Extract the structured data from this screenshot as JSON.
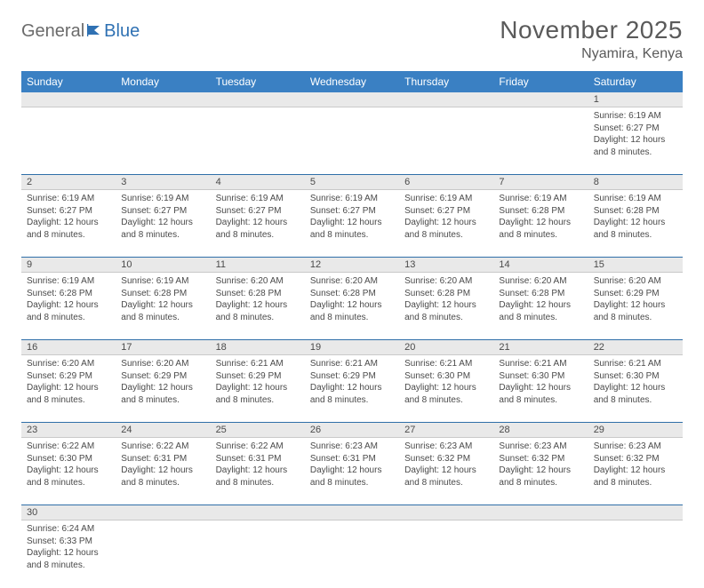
{
  "brand": {
    "part1": "General",
    "part2": "Blue"
  },
  "title": "November 2025",
  "location": "Nyamira, Kenya",
  "colors": {
    "header_bg": "#3a80c3",
    "header_text": "#ffffff",
    "daynum_bg": "#e9e9e9",
    "row_divider": "#2f6fa8",
    "text": "#4a4a4a",
    "brand_gray": "#6b6b6b",
    "brand_blue": "#2f71b3",
    "title_color": "#5a5a5a"
  },
  "typography": {
    "title_fontsize": 28,
    "location_fontsize": 16,
    "header_fontsize": 12,
    "daynum_fontsize": 11,
    "cell_fontsize": 10
  },
  "week_headers": [
    "Sunday",
    "Monday",
    "Tuesday",
    "Wednesday",
    "Thursday",
    "Friday",
    "Saturday"
  ],
  "weeks": [
    [
      null,
      null,
      null,
      null,
      null,
      null,
      {
        "n": "1",
        "sunrise": "Sunrise: 6:19 AM",
        "sunset": "Sunset: 6:27 PM",
        "daylight": "Daylight: 12 hours and 8 minutes."
      }
    ],
    [
      {
        "n": "2",
        "sunrise": "Sunrise: 6:19 AM",
        "sunset": "Sunset: 6:27 PM",
        "daylight": "Daylight: 12 hours and 8 minutes."
      },
      {
        "n": "3",
        "sunrise": "Sunrise: 6:19 AM",
        "sunset": "Sunset: 6:27 PM",
        "daylight": "Daylight: 12 hours and 8 minutes."
      },
      {
        "n": "4",
        "sunrise": "Sunrise: 6:19 AM",
        "sunset": "Sunset: 6:27 PM",
        "daylight": "Daylight: 12 hours and 8 minutes."
      },
      {
        "n": "5",
        "sunrise": "Sunrise: 6:19 AM",
        "sunset": "Sunset: 6:27 PM",
        "daylight": "Daylight: 12 hours and 8 minutes."
      },
      {
        "n": "6",
        "sunrise": "Sunrise: 6:19 AM",
        "sunset": "Sunset: 6:27 PM",
        "daylight": "Daylight: 12 hours and 8 minutes."
      },
      {
        "n": "7",
        "sunrise": "Sunrise: 6:19 AM",
        "sunset": "Sunset: 6:28 PM",
        "daylight": "Daylight: 12 hours and 8 minutes."
      },
      {
        "n": "8",
        "sunrise": "Sunrise: 6:19 AM",
        "sunset": "Sunset: 6:28 PM",
        "daylight": "Daylight: 12 hours and 8 minutes."
      }
    ],
    [
      {
        "n": "9",
        "sunrise": "Sunrise: 6:19 AM",
        "sunset": "Sunset: 6:28 PM",
        "daylight": "Daylight: 12 hours and 8 minutes."
      },
      {
        "n": "10",
        "sunrise": "Sunrise: 6:19 AM",
        "sunset": "Sunset: 6:28 PM",
        "daylight": "Daylight: 12 hours and 8 minutes."
      },
      {
        "n": "11",
        "sunrise": "Sunrise: 6:20 AM",
        "sunset": "Sunset: 6:28 PM",
        "daylight": "Daylight: 12 hours and 8 minutes."
      },
      {
        "n": "12",
        "sunrise": "Sunrise: 6:20 AM",
        "sunset": "Sunset: 6:28 PM",
        "daylight": "Daylight: 12 hours and 8 minutes."
      },
      {
        "n": "13",
        "sunrise": "Sunrise: 6:20 AM",
        "sunset": "Sunset: 6:28 PM",
        "daylight": "Daylight: 12 hours and 8 minutes."
      },
      {
        "n": "14",
        "sunrise": "Sunrise: 6:20 AM",
        "sunset": "Sunset: 6:28 PM",
        "daylight": "Daylight: 12 hours and 8 minutes."
      },
      {
        "n": "15",
        "sunrise": "Sunrise: 6:20 AM",
        "sunset": "Sunset: 6:29 PM",
        "daylight": "Daylight: 12 hours and 8 minutes."
      }
    ],
    [
      {
        "n": "16",
        "sunrise": "Sunrise: 6:20 AM",
        "sunset": "Sunset: 6:29 PM",
        "daylight": "Daylight: 12 hours and 8 minutes."
      },
      {
        "n": "17",
        "sunrise": "Sunrise: 6:20 AM",
        "sunset": "Sunset: 6:29 PM",
        "daylight": "Daylight: 12 hours and 8 minutes."
      },
      {
        "n": "18",
        "sunrise": "Sunrise: 6:21 AM",
        "sunset": "Sunset: 6:29 PM",
        "daylight": "Daylight: 12 hours and 8 minutes."
      },
      {
        "n": "19",
        "sunrise": "Sunrise: 6:21 AM",
        "sunset": "Sunset: 6:29 PM",
        "daylight": "Daylight: 12 hours and 8 minutes."
      },
      {
        "n": "20",
        "sunrise": "Sunrise: 6:21 AM",
        "sunset": "Sunset: 6:30 PM",
        "daylight": "Daylight: 12 hours and 8 minutes."
      },
      {
        "n": "21",
        "sunrise": "Sunrise: 6:21 AM",
        "sunset": "Sunset: 6:30 PM",
        "daylight": "Daylight: 12 hours and 8 minutes."
      },
      {
        "n": "22",
        "sunrise": "Sunrise: 6:21 AM",
        "sunset": "Sunset: 6:30 PM",
        "daylight": "Daylight: 12 hours and 8 minutes."
      }
    ],
    [
      {
        "n": "23",
        "sunrise": "Sunrise: 6:22 AM",
        "sunset": "Sunset: 6:30 PM",
        "daylight": "Daylight: 12 hours and 8 minutes."
      },
      {
        "n": "24",
        "sunrise": "Sunrise: 6:22 AM",
        "sunset": "Sunset: 6:31 PM",
        "daylight": "Daylight: 12 hours and 8 minutes."
      },
      {
        "n": "25",
        "sunrise": "Sunrise: 6:22 AM",
        "sunset": "Sunset: 6:31 PM",
        "daylight": "Daylight: 12 hours and 8 minutes."
      },
      {
        "n": "26",
        "sunrise": "Sunrise: 6:23 AM",
        "sunset": "Sunset: 6:31 PM",
        "daylight": "Daylight: 12 hours and 8 minutes."
      },
      {
        "n": "27",
        "sunrise": "Sunrise: 6:23 AM",
        "sunset": "Sunset: 6:32 PM",
        "daylight": "Daylight: 12 hours and 8 minutes."
      },
      {
        "n": "28",
        "sunrise": "Sunrise: 6:23 AM",
        "sunset": "Sunset: 6:32 PM",
        "daylight": "Daylight: 12 hours and 8 minutes."
      },
      {
        "n": "29",
        "sunrise": "Sunrise: 6:23 AM",
        "sunset": "Sunset: 6:32 PM",
        "daylight": "Daylight: 12 hours and 8 minutes."
      }
    ],
    [
      {
        "n": "30",
        "sunrise": "Sunrise: 6:24 AM",
        "sunset": "Sunset: 6:33 PM",
        "daylight": "Daylight: 12 hours and 8 minutes."
      },
      null,
      null,
      null,
      null,
      null,
      null
    ]
  ]
}
